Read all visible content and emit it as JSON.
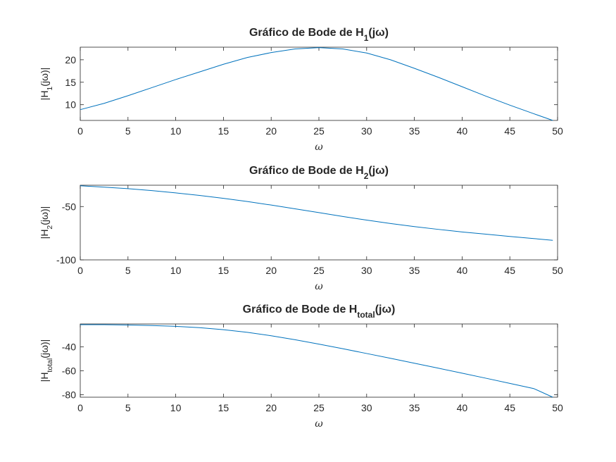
{
  "chart_data": [
    {
      "type": "line",
      "title": {
        "prefix": "Gráfico de Bode de H",
        "sub": "1",
        "suffix": "(jω)"
      },
      "ylabel": {
        "prefix": "|H",
        "sub": "1",
        "suffix": "(jω)|"
      },
      "xlabel": "ω",
      "xlim": [
        0,
        50
      ],
      "ylim": [
        6.5,
        22.8
      ],
      "xticks": [
        0,
        5,
        10,
        15,
        20,
        25,
        30,
        35,
        40,
        45,
        50
      ],
      "yticks": [
        10,
        15,
        20
      ],
      "color": "#0072BD",
      "x": [
        0,
        2.5,
        5,
        7.5,
        10,
        12.5,
        15,
        17.5,
        20,
        22.5,
        25,
        27.5,
        30,
        32.5,
        35,
        37.5,
        40,
        42.5,
        45,
        47.5,
        49.5
      ],
      "y": [
        8.9,
        10.3,
        12.0,
        13.8,
        15.6,
        17.3,
        19.0,
        20.5,
        21.6,
        22.4,
        22.7,
        22.4,
        21.5,
        20.0,
        18.1,
        16.1,
        14.0,
        11.9,
        9.9,
        8.0,
        6.5
      ]
    },
    {
      "type": "line",
      "title": {
        "prefix": "Gráfico de Bode de H",
        "sub": "2",
        "suffix": "(jω)"
      },
      "ylabel": {
        "prefix": "|H",
        "sub": "2",
        "suffix": "(jω)|"
      },
      "xlabel": "ω",
      "xlim": [
        0,
        50
      ],
      "ylim": [
        -100,
        -30
      ],
      "xticks": [
        0,
        5,
        10,
        15,
        20,
        25,
        30,
        35,
        40,
        45,
        50
      ],
      "yticks": [
        -50,
        -100
      ],
      "color": "#0072BD",
      "x": [
        0,
        2.5,
        5,
        7.5,
        10,
        12.5,
        15,
        17.5,
        20,
        22.5,
        25,
        27.5,
        30,
        32.5,
        35,
        37.5,
        40,
        42.5,
        45,
        47.5,
        49.5
      ],
      "y": [
        -30.5,
        -31.8,
        -33.2,
        -35.0,
        -37.2,
        -39.6,
        -42.3,
        -45.3,
        -48.6,
        -52.1,
        -55.7,
        -59.3,
        -62.7,
        -65.9,
        -68.8,
        -71.4,
        -73.8,
        -75.9,
        -78.0,
        -80.0,
        -81.7
      ]
    },
    {
      "type": "line",
      "title": {
        "prefix": "Gráfico de Bode de H",
        "sub": "total",
        "suffix": "(jω)"
      },
      "ylabel": {
        "prefix": "|H",
        "sub": "total",
        "suffix": "(jω)|"
      },
      "xlabel": "ω",
      "xlim": [
        0,
        50
      ],
      "ylim": [
        -82,
        -21
      ],
      "xticks": [
        0,
        5,
        10,
        15,
        20,
        25,
        30,
        35,
        40,
        45,
        50
      ],
      "yticks": [
        -40,
        -60,
        -80
      ],
      "color": "#0072BD",
      "x": [
        0,
        2.5,
        5,
        7.5,
        10,
        12.5,
        15,
        17.5,
        20,
        22.5,
        25,
        27.5,
        30,
        32.5,
        35,
        37.5,
        40,
        42.5,
        45,
        47.5,
        49.5
      ],
      "y": [
        -21.6,
        -21.6,
        -21.9,
        -22.3,
        -23.0,
        -24.1,
        -25.8,
        -28.0,
        -30.8,
        -34.1,
        -37.8,
        -41.6,
        -45.6,
        -49.6,
        -53.7,
        -57.8,
        -62.0,
        -66.2,
        -70.5,
        -74.8,
        -82.0
      ]
    }
  ]
}
